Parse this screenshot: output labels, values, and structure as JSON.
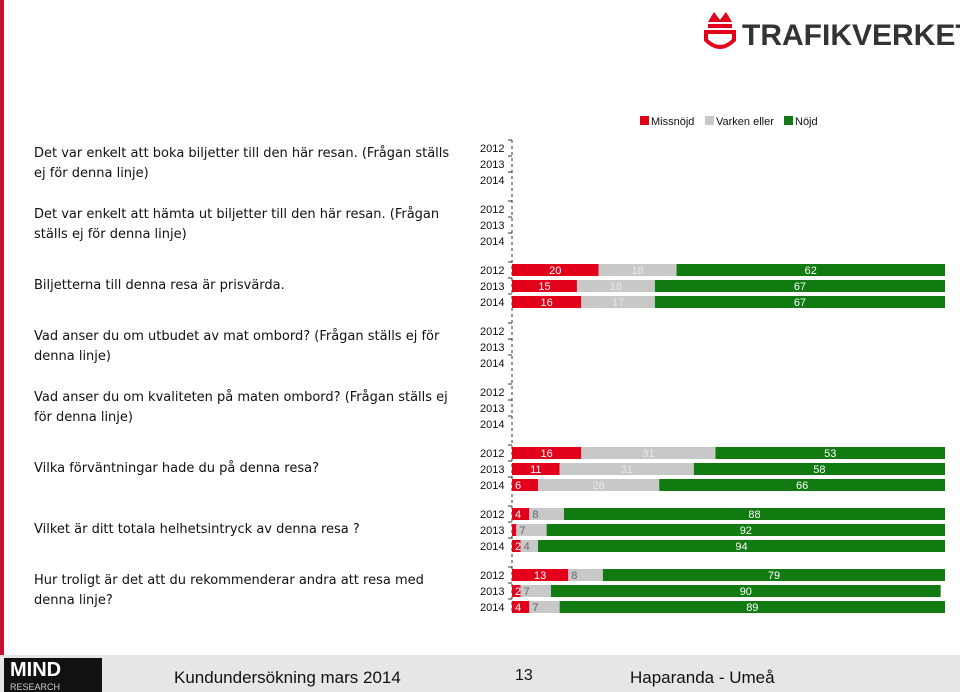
{
  "header": {
    "logo": "TRAFIKVERKET"
  },
  "chart_data": {
    "type": "stacked-bar",
    "xlim": [
      0,
      100
    ],
    "series": [
      {
        "name": "Missnöjd",
        "color": "#e3001b"
      },
      {
        "name": "Varken eller",
        "color": "#c8c8c8"
      },
      {
        "name": "Nöjd",
        "color": "#117a11"
      }
    ],
    "years": [
      "2012",
      "2013",
      "2014"
    ],
    "questions": [
      {
        "label": "Det var enkelt att boka biljetter till den här resan. (Frågan ställs ej för denna linje)",
        "values": [
          null,
          null,
          null
        ]
      },
      {
        "label": "Det var enkelt att hämta ut biljetter till den här resan. (Frågan ställs ej för denna linje)",
        "values": [
          null,
          null,
          null
        ]
      },
      {
        "label": "Biljetterna till denna resa är prisvärda.",
        "values": [
          [
            20,
            18,
            62
          ],
          [
            15,
            18,
            67
          ],
          [
            16,
            17,
            67
          ]
        ]
      },
      {
        "label": "Vad anser du om utbudet av mat ombord? (Frågan ställs ej för denna linje)",
        "values": [
          null,
          null,
          null
        ]
      },
      {
        "label": "Vad anser du om kvaliteten på maten ombord? (Frågan ställs ej för denna linje)",
        "values": [
          null,
          null,
          null
        ]
      },
      {
        "label": "Vilka förväntningar hade du på denna resa?",
        "values": [
          [
            16,
            31,
            53
          ],
          [
            11,
            31,
            58
          ],
          [
            6,
            28,
            66
          ]
        ]
      },
      {
        "label": "Vilket är ditt totala helhetsintryck av denna resa ?",
        "values": [
          [
            4,
            8,
            88
          ],
          [
            1,
            7,
            92
          ],
          [
            2,
            4,
            94
          ]
        ]
      },
      {
        "label": "Hur troligt är det att du rekommenderar andra att resa med denna linje?",
        "values": [
          [
            13,
            8,
            79
          ],
          [
            2,
            7,
            90
          ],
          [
            4,
            7,
            89
          ]
        ]
      }
    ]
  },
  "footer": {
    "logo_top": "MIND",
    "logo_bottom": "RESEARCH",
    "left": "Kundundersökning mars 2014",
    "page": "13",
    "right": "Haparanda - Umeå"
  }
}
